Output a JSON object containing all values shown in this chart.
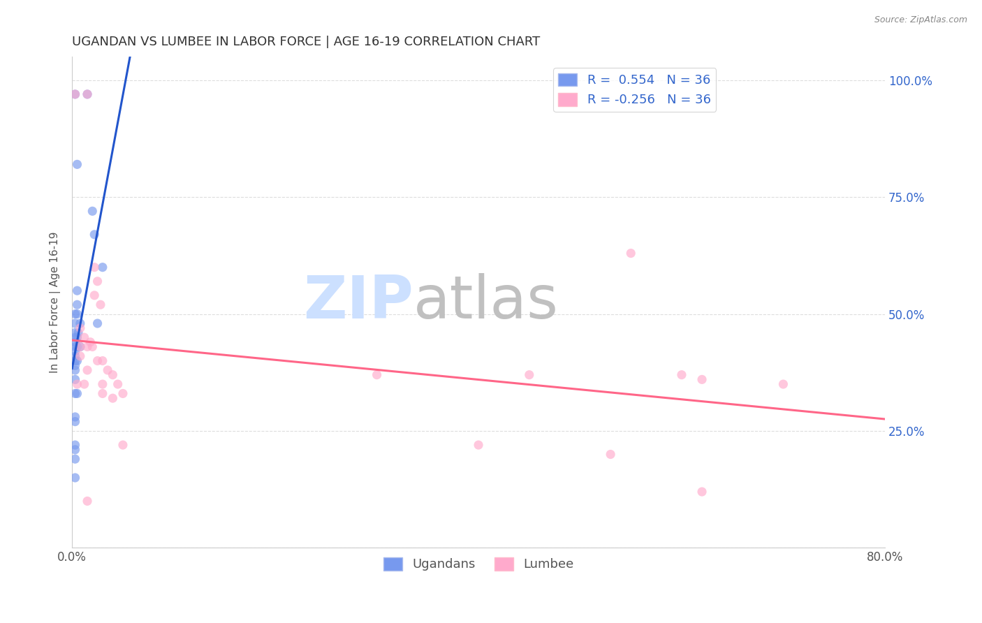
{
  "title": "UGANDAN VS LUMBEE IN LABOR FORCE | AGE 16-19 CORRELATION CHART",
  "source": "Source: ZipAtlas.com",
  "ylabel": "In Labor Force | Age 16-19",
  "ugandan_scatter": [
    [
      0.003,
      0.97
    ],
    [
      0.015,
      0.97
    ],
    [
      0.005,
      0.82
    ],
    [
      0.02,
      0.72
    ],
    [
      0.022,
      0.67
    ],
    [
      0.03,
      0.6
    ],
    [
      0.005,
      0.55
    ],
    [
      0.005,
      0.52
    ],
    [
      0.003,
      0.5
    ],
    [
      0.005,
      0.5
    ],
    [
      0.003,
      0.48
    ],
    [
      0.008,
      0.48
    ],
    [
      0.003,
      0.46
    ],
    [
      0.006,
      0.46
    ],
    [
      0.003,
      0.45
    ],
    [
      0.005,
      0.45
    ],
    [
      0.003,
      0.44
    ],
    [
      0.003,
      0.43
    ],
    [
      0.005,
      0.43
    ],
    [
      0.008,
      0.43
    ],
    [
      0.003,
      0.42
    ],
    [
      0.003,
      0.41
    ],
    [
      0.003,
      0.4
    ],
    [
      0.005,
      0.4
    ],
    [
      0.003,
      0.39
    ],
    [
      0.003,
      0.38
    ],
    [
      0.003,
      0.36
    ],
    [
      0.003,
      0.33
    ],
    [
      0.005,
      0.33
    ],
    [
      0.003,
      0.28
    ],
    [
      0.003,
      0.27
    ],
    [
      0.003,
      0.22
    ],
    [
      0.003,
      0.21
    ],
    [
      0.003,
      0.19
    ],
    [
      0.003,
      0.15
    ],
    [
      0.025,
      0.48
    ]
  ],
  "lumbee_scatter": [
    [
      0.003,
      0.97
    ],
    [
      0.015,
      0.97
    ],
    [
      0.022,
      0.6
    ],
    [
      0.025,
      0.57
    ],
    [
      0.022,
      0.54
    ],
    [
      0.028,
      0.52
    ],
    [
      0.008,
      0.47
    ],
    [
      0.012,
      0.45
    ],
    [
      0.018,
      0.44
    ],
    [
      0.008,
      0.43
    ],
    [
      0.015,
      0.43
    ],
    [
      0.02,
      0.43
    ],
    [
      0.008,
      0.41
    ],
    [
      0.025,
      0.4
    ],
    [
      0.03,
      0.4
    ],
    [
      0.015,
      0.38
    ],
    [
      0.035,
      0.38
    ],
    [
      0.04,
      0.37
    ],
    [
      0.005,
      0.35
    ],
    [
      0.012,
      0.35
    ],
    [
      0.03,
      0.35
    ],
    [
      0.045,
      0.35
    ],
    [
      0.03,
      0.33
    ],
    [
      0.05,
      0.33
    ],
    [
      0.04,
      0.32
    ],
    [
      0.3,
      0.37
    ],
    [
      0.45,
      0.37
    ],
    [
      0.55,
      0.63
    ],
    [
      0.6,
      0.37
    ],
    [
      0.62,
      0.36
    ],
    [
      0.05,
      0.22
    ],
    [
      0.4,
      0.22
    ],
    [
      0.53,
      0.2
    ],
    [
      0.62,
      0.12
    ],
    [
      0.7,
      0.35
    ],
    [
      0.015,
      0.1
    ]
  ],
  "ugandan_color": "#7799ee",
  "lumbee_color": "#ffaacc",
  "ugandan_line_color": "#2255cc",
  "lumbee_line_color": "#ff6688",
  "background_color": "#ffffff",
  "watermark_zip_color": "#cce0ff",
  "watermark_atlas_color": "#c0c0c0",
  "xmin": 0.0,
  "xmax": 0.8,
  "ymin": 0.0,
  "ymax": 1.05,
  "marker_size": 90,
  "grid_color": "#dddddd",
  "title_fontsize": 13,
  "tick_fontsize": 12
}
